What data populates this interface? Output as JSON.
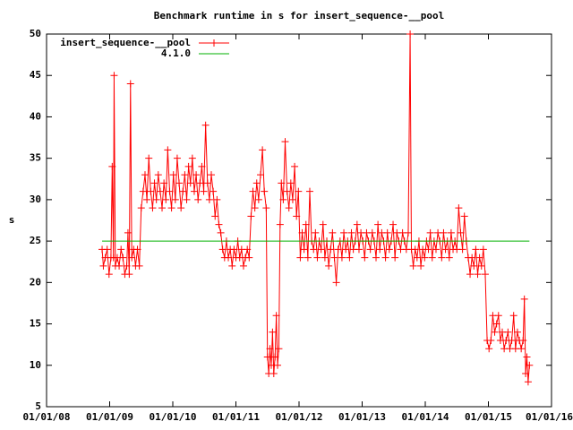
{
  "chart_data": {
    "type": "line",
    "title": "Benchmark runtime in s for insert_sequence-__pool",
    "y_label": "s",
    "xlim": [
      2008,
      2016
    ],
    "xticks": [
      {
        "value": 2008,
        "label": "01/01/08"
      },
      {
        "value": 2009,
        "label": "01/01/09"
      },
      {
        "value": 2010,
        "label": "01/01/10"
      },
      {
        "value": 2011,
        "label": "01/01/11"
      },
      {
        "value": 2012,
        "label": "01/01/12"
      },
      {
        "value": 2013,
        "label": "01/01/13"
      },
      {
        "value": 2014,
        "label": "01/01/14"
      },
      {
        "value": 2015,
        "label": "01/01/15"
      },
      {
        "value": 2016,
        "label": "01/01/16"
      }
    ],
    "ylim": [
      5,
      50
    ],
    "yticks": [
      5,
      10,
      15,
      20,
      25,
      30,
      35,
      40,
      45,
      50
    ],
    "grid": false,
    "legend": "top-left",
    "series": [
      {
        "name": "insert_sequence-__pool",
        "color": "#ff0000",
        "markers": true,
        "x": [
          2008.88,
          2008.9,
          2008.93,
          2008.96,
          2008.99,
          2009.02,
          2009.04,
          2009.06,
          2009.07,
          2009.09,
          2009.12,
          2009.15,
          2009.18,
          2009.21,
          2009.24,
          2009.27,
          2009.29,
          2009.31,
          2009.33,
          2009.35,
          2009.38,
          2009.41,
          2009.44,
          2009.47,
          2009.5,
          2009.53,
          2009.56,
          2009.59,
          2009.62,
          2009.65,
          2009.68,
          2009.71,
          2009.74,
          2009.77,
          2009.8,
          2009.83,
          2009.86,
          2009.89,
          2009.92,
          2009.95,
          2009.98,
          2010.01,
          2010.04,
          2010.07,
          2010.1,
          2010.13,
          2010.16,
          2010.19,
          2010.22,
          2010.25,
          2010.28,
          2010.31,
          2010.34,
          2010.37,
          2010.4,
          2010.43,
          2010.46,
          2010.49,
          2010.52,
          2010.55,
          2010.58,
          2010.61,
          2010.64,
          2010.67,
          2010.7,
          2010.73,
          2010.76,
          2010.79,
          2010.82,
          2010.85,
          2010.88,
          2010.91,
          2010.94,
          2010.97,
          2011.0,
          2011.03,
          2011.06,
          2011.09,
          2011.12,
          2011.15,
          2011.18,
          2011.21,
          2011.24,
          2011.27,
          2011.3,
          2011.33,
          2011.36,
          2011.39,
          2011.42,
          2011.45,
          2011.48,
          2011.5,
          2011.52,
          2011.54,
          2011.56,
          2011.58,
          2011.6,
          2011.62,
          2011.64,
          2011.66,
          2011.68,
          2011.7,
          2011.72,
          2011.75,
          2011.78,
          2011.81,
          2011.84,
          2011.87,
          2011.9,
          2011.93,
          2011.96,
          2011.99,
          2012.02,
          2012.05,
          2012.08,
          2012.11,
          2012.14,
          2012.17,
          2012.2,
          2012.23,
          2012.26,
          2012.29,
          2012.32,
          2012.35,
          2012.38,
          2012.41,
          2012.44,
          2012.47,
          2012.5,
          2012.53,
          2012.56,
          2012.59,
          2012.62,
          2012.65,
          2012.68,
          2012.71,
          2012.74,
          2012.77,
          2012.8,
          2012.83,
          2012.86,
          2012.89,
          2012.92,
          2012.95,
          2012.98,
          2013.01,
          2013.04,
          2013.07,
          2013.1,
          2013.13,
          2013.16,
          2013.19,
          2013.22,
          2013.25,
          2013.28,
          2013.31,
          2013.34,
          2013.37,
          2013.4,
          2013.43,
          2013.46,
          2013.49,
          2013.52,
          2013.55,
          2013.58,
          2013.61,
          2013.64,
          2013.67,
          2013.7,
          2013.73,
          2013.76,
          2013.78,
          2013.81,
          2013.84,
          2013.87,
          2013.9,
          2013.93,
          2013.96,
          2013.99,
          2014.02,
          2014.05,
          2014.08,
          2014.11,
          2014.14,
          2014.17,
          2014.2,
          2014.23,
          2014.26,
          2014.29,
          2014.32,
          2014.35,
          2014.38,
          2014.41,
          2014.44,
          2014.47,
          2014.5,
          2014.53,
          2014.56,
          2014.59,
          2014.62,
          2014.65,
          2014.68,
          2014.71,
          2014.74,
          2014.77,
          2014.8,
          2014.83,
          2014.86,
          2014.89,
          2014.92,
          2014.95,
          2014.98,
          2015.01,
          2015.04,
          2015.07,
          2015.1,
          2015.13,
          2015.16,
          2015.19,
          2015.22,
          2015.25,
          2015.28,
          2015.31,
          2015.34,
          2015.37,
          2015.4,
          2015.43,
          2015.46,
          2015.49,
          2015.52,
          2015.55,
          2015.57,
          2015.59,
          2015.61,
          2015.63,
          2015.65
        ],
        "values": [
          24,
          22,
          23,
          24,
          21,
          23,
          34,
          23,
          45,
          22,
          23,
          22,
          24,
          23,
          21,
          22,
          26,
          21,
          44,
          23,
          24,
          22,
          24,
          22,
          29,
          31,
          33,
          30,
          35,
          31,
          29,
          32,
          30,
          33,
          31,
          29,
          32,
          30,
          36,
          31,
          29,
          33,
          30,
          35,
          32,
          29,
          31,
          33,
          30,
          34,
          32,
          35,
          31,
          33,
          30,
          32,
          34,
          31,
          39,
          32,
          30,
          33,
          31,
          28,
          30,
          27,
          26,
          24,
          23,
          25,
          23,
          24,
          22,
          24,
          23,
          25,
          23,
          24,
          22,
          23,
          24,
          23,
          28,
          31,
          29,
          32,
          30,
          33,
          36,
          31,
          29,
          11,
          9,
          12,
          10,
          14,
          9,
          11,
          16,
          10,
          12,
          27,
          32,
          30,
          37,
          31,
          29,
          32,
          30,
          34,
          28,
          31,
          23,
          26,
          24,
          27,
          23,
          31,
          25,
          24,
          26,
          23,
          25,
          24,
          27,
          23,
          25,
          22,
          24,
          26,
          23,
          20,
          24,
          25,
          23,
          26,
          24,
          25,
          23,
          26,
          24,
          25,
          27,
          24,
          26,
          25,
          23,
          26,
          25,
          24,
          26,
          25,
          23,
          27,
          24,
          26,
          25,
          23,
          26,
          24,
          25,
          27,
          23,
          26,
          25,
          24,
          26,
          25,
          24,
          26,
          50,
          24,
          22,
          24,
          23,
          25,
          22,
          24,
          23,
          25,
          24,
          26,
          23,
          25,
          24,
          26,
          25,
          23,
          26,
          24,
          25,
          23,
          26,
          24,
          25,
          24,
          29,
          26,
          24,
          28,
          25,
          23,
          21,
          23,
          22,
          24,
          21,
          23,
          22,
          24,
          21,
          13,
          12,
          13,
          16,
          14,
          15,
          16,
          13,
          14,
          12,
          13,
          14,
          12,
          13,
          16,
          12,
          14,
          13,
          12,
          13,
          18,
          9,
          11,
          8,
          10
        ]
      },
      {
        "name": "4.1.0",
        "color": "#00b000",
        "markers": false,
        "x": [
          2008.88,
          2015.65
        ],
        "values": [
          25,
          25
        ]
      }
    ]
  }
}
